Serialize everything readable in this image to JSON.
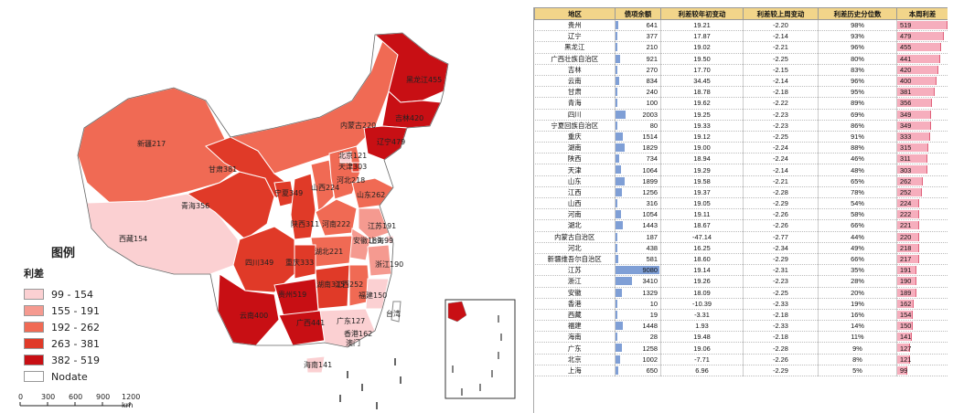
{
  "map": {
    "legend_title": "图例",
    "legend_subtitle": "利差",
    "legend_items": [
      {
        "label": "99 - 154",
        "color": "#fbd0d2"
      },
      {
        "label": "155 - 191",
        "color": "#f59a90"
      },
      {
        "label": "192 - 262",
        "color": "#f06a54"
      },
      {
        "label": "263 - 381",
        "color": "#e03a28"
      },
      {
        "label": "382 - 519",
        "color": "#c80f14"
      },
      {
        "label": "Nodate",
        "color": "#ffffff"
      }
    ],
    "scale_ticks": [
      "0",
      "300",
      "600",
      "900",
      "1200 km"
    ],
    "regions": [
      {
        "label": "黑龙江455",
        "value": 455
      },
      {
        "label": "吉林420",
        "value": 420
      },
      {
        "label": "辽宁479",
        "value": 479
      },
      {
        "label": "内蒙古220",
        "value": 220
      },
      {
        "label": "新疆217",
        "value": 217
      },
      {
        "label": "西藏154",
        "value": 154
      },
      {
        "label": "青海356",
        "value": 356
      },
      {
        "label": "甘肃381",
        "value": 381
      },
      {
        "label": "宁夏349",
        "value": 349
      },
      {
        "label": "陕西311",
        "value": 311
      },
      {
        "label": "山西224",
        "value": 224
      },
      {
        "label": "河北218",
        "value": 218
      },
      {
        "label": "北京121",
        "value": 121
      },
      {
        "label": "天津303",
        "value": 303
      },
      {
        "label": "山东262",
        "value": 262
      },
      {
        "label": "河南222",
        "value": 222
      },
      {
        "label": "江苏191",
        "value": 191
      },
      {
        "label": "安徽189",
        "value": 189
      },
      {
        "label": "上海99",
        "value": 99
      },
      {
        "label": "湖北221",
        "value": 221
      },
      {
        "label": "浙江190",
        "value": 190
      },
      {
        "label": "四川349",
        "value": 349
      },
      {
        "label": "重庆333",
        "value": 333
      },
      {
        "label": "湖南315",
        "value": 315
      },
      {
        "label": "江西252",
        "value": 252
      },
      {
        "label": "福建150",
        "value": 150
      },
      {
        "label": "贵州519",
        "value": 519
      },
      {
        "label": "云南400",
        "value": 400
      },
      {
        "label": "广西441",
        "value": 441
      },
      {
        "label": "广东127",
        "value": 127
      },
      {
        "label": "香港162",
        "value": 162
      },
      {
        "label": "澳门",
        "value": null
      },
      {
        "label": "海南141",
        "value": 141
      },
      {
        "label": "台湾",
        "value": null
      }
    ]
  },
  "table": {
    "headers": [
      "地区",
      "债项余额",
      "利差较年初变动",
      "利差较上周变动",
      "利差历史分位数",
      "本周利差"
    ],
    "rows": [
      [
        "贵州",
        "641",
        "19.21",
        "-2.20",
        "98%",
        "519"
      ],
      [
        "辽宁",
        "377",
        "17.87",
        "-2.14",
        "93%",
        "479"
      ],
      [
        "黑龙江",
        "210",
        "19.02",
        "-2.21",
        "96%",
        "455"
      ],
      [
        "广西壮族自治区",
        "921",
        "19.50",
        "-2.25",
        "80%",
        "441"
      ],
      [
        "吉林",
        "270",
        "17.70",
        "-2.15",
        "83%",
        "420"
      ],
      [
        "云南",
        "834",
        "34.45",
        "-2.14",
        "96%",
        "400"
      ],
      [
        "甘肃",
        "240",
        "18.78",
        "-2.18",
        "95%",
        "381"
      ],
      [
        "青海",
        "100",
        "19.62",
        "-2.22",
        "89%",
        "356"
      ],
      [
        "四川",
        "2003",
        "19.25",
        "-2.23",
        "69%",
        "349"
      ],
      [
        "宁夏回族自治区",
        "80",
        "19.33",
        "-2.23",
        "86%",
        "349"
      ],
      [
        "重庆",
        "1514",
        "19.12",
        "-2.25",
        "91%",
        "333"
      ],
      [
        "湖南",
        "1829",
        "19.00",
        "-2.24",
        "88%",
        "315"
      ],
      [
        "陕西",
        "734",
        "18.94",
        "-2.24",
        "46%",
        "311"
      ],
      [
        "天津",
        "1064",
        "19.29",
        "-2.14",
        "48%",
        "303"
      ],
      [
        "山东",
        "1899",
        "19.58",
        "-2.21",
        "65%",
        "262"
      ],
      [
        "江西",
        "1256",
        "19.37",
        "-2.28",
        "78%",
        "252"
      ],
      [
        "山西",
        "316",
        "19.05",
        "-2.29",
        "54%",
        "224"
      ],
      [
        "河南",
        "1054",
        "19.11",
        "-2.26",
        "58%",
        "222"
      ],
      [
        "湖北",
        "1443",
        "18.67",
        "-2.26",
        "66%",
        "221"
      ],
      [
        "内蒙古自治区",
        "187",
        "-47.14",
        "-2.77",
        "44%",
        "220"
      ],
      [
        "河北",
        "438",
        "16.25",
        "-2.34",
        "49%",
        "218"
      ],
      [
        "新疆维吾尔自治区",
        "581",
        "18.60",
        "-2.29",
        "66%",
        "217"
      ],
      [
        "江苏",
        "9080",
        "19.14",
        "-2.31",
        "35%",
        "191"
      ],
      [
        "浙江",
        "3410",
        "19.26",
        "-2.23",
        "28%",
        "190"
      ],
      [
        "安徽",
        "1329",
        "18.09",
        "-2.25",
        "20%",
        "189"
      ],
      [
        "香港",
        "10",
        "-10.39",
        "-2.33",
        "19%",
        "162"
      ],
      [
        "西藏",
        "19",
        "-3.31",
        "-2.18",
        "16%",
        "154"
      ],
      [
        "福建",
        "1448",
        "1.93",
        "-2.33",
        "14%",
        "150"
      ],
      [
        "海南",
        "28",
        "19.48",
        "-2.18",
        "11%",
        "141"
      ],
      [
        "广东",
        "1258",
        "19.06",
        "-2.28",
        "9%",
        "127"
      ],
      [
        "北京",
        "1002",
        "-7.71",
        "-2.26",
        "8%",
        "121"
      ],
      [
        "上海",
        "650",
        "6.96",
        "-2.29",
        "5%",
        "99"
      ]
    ]
  }
}
